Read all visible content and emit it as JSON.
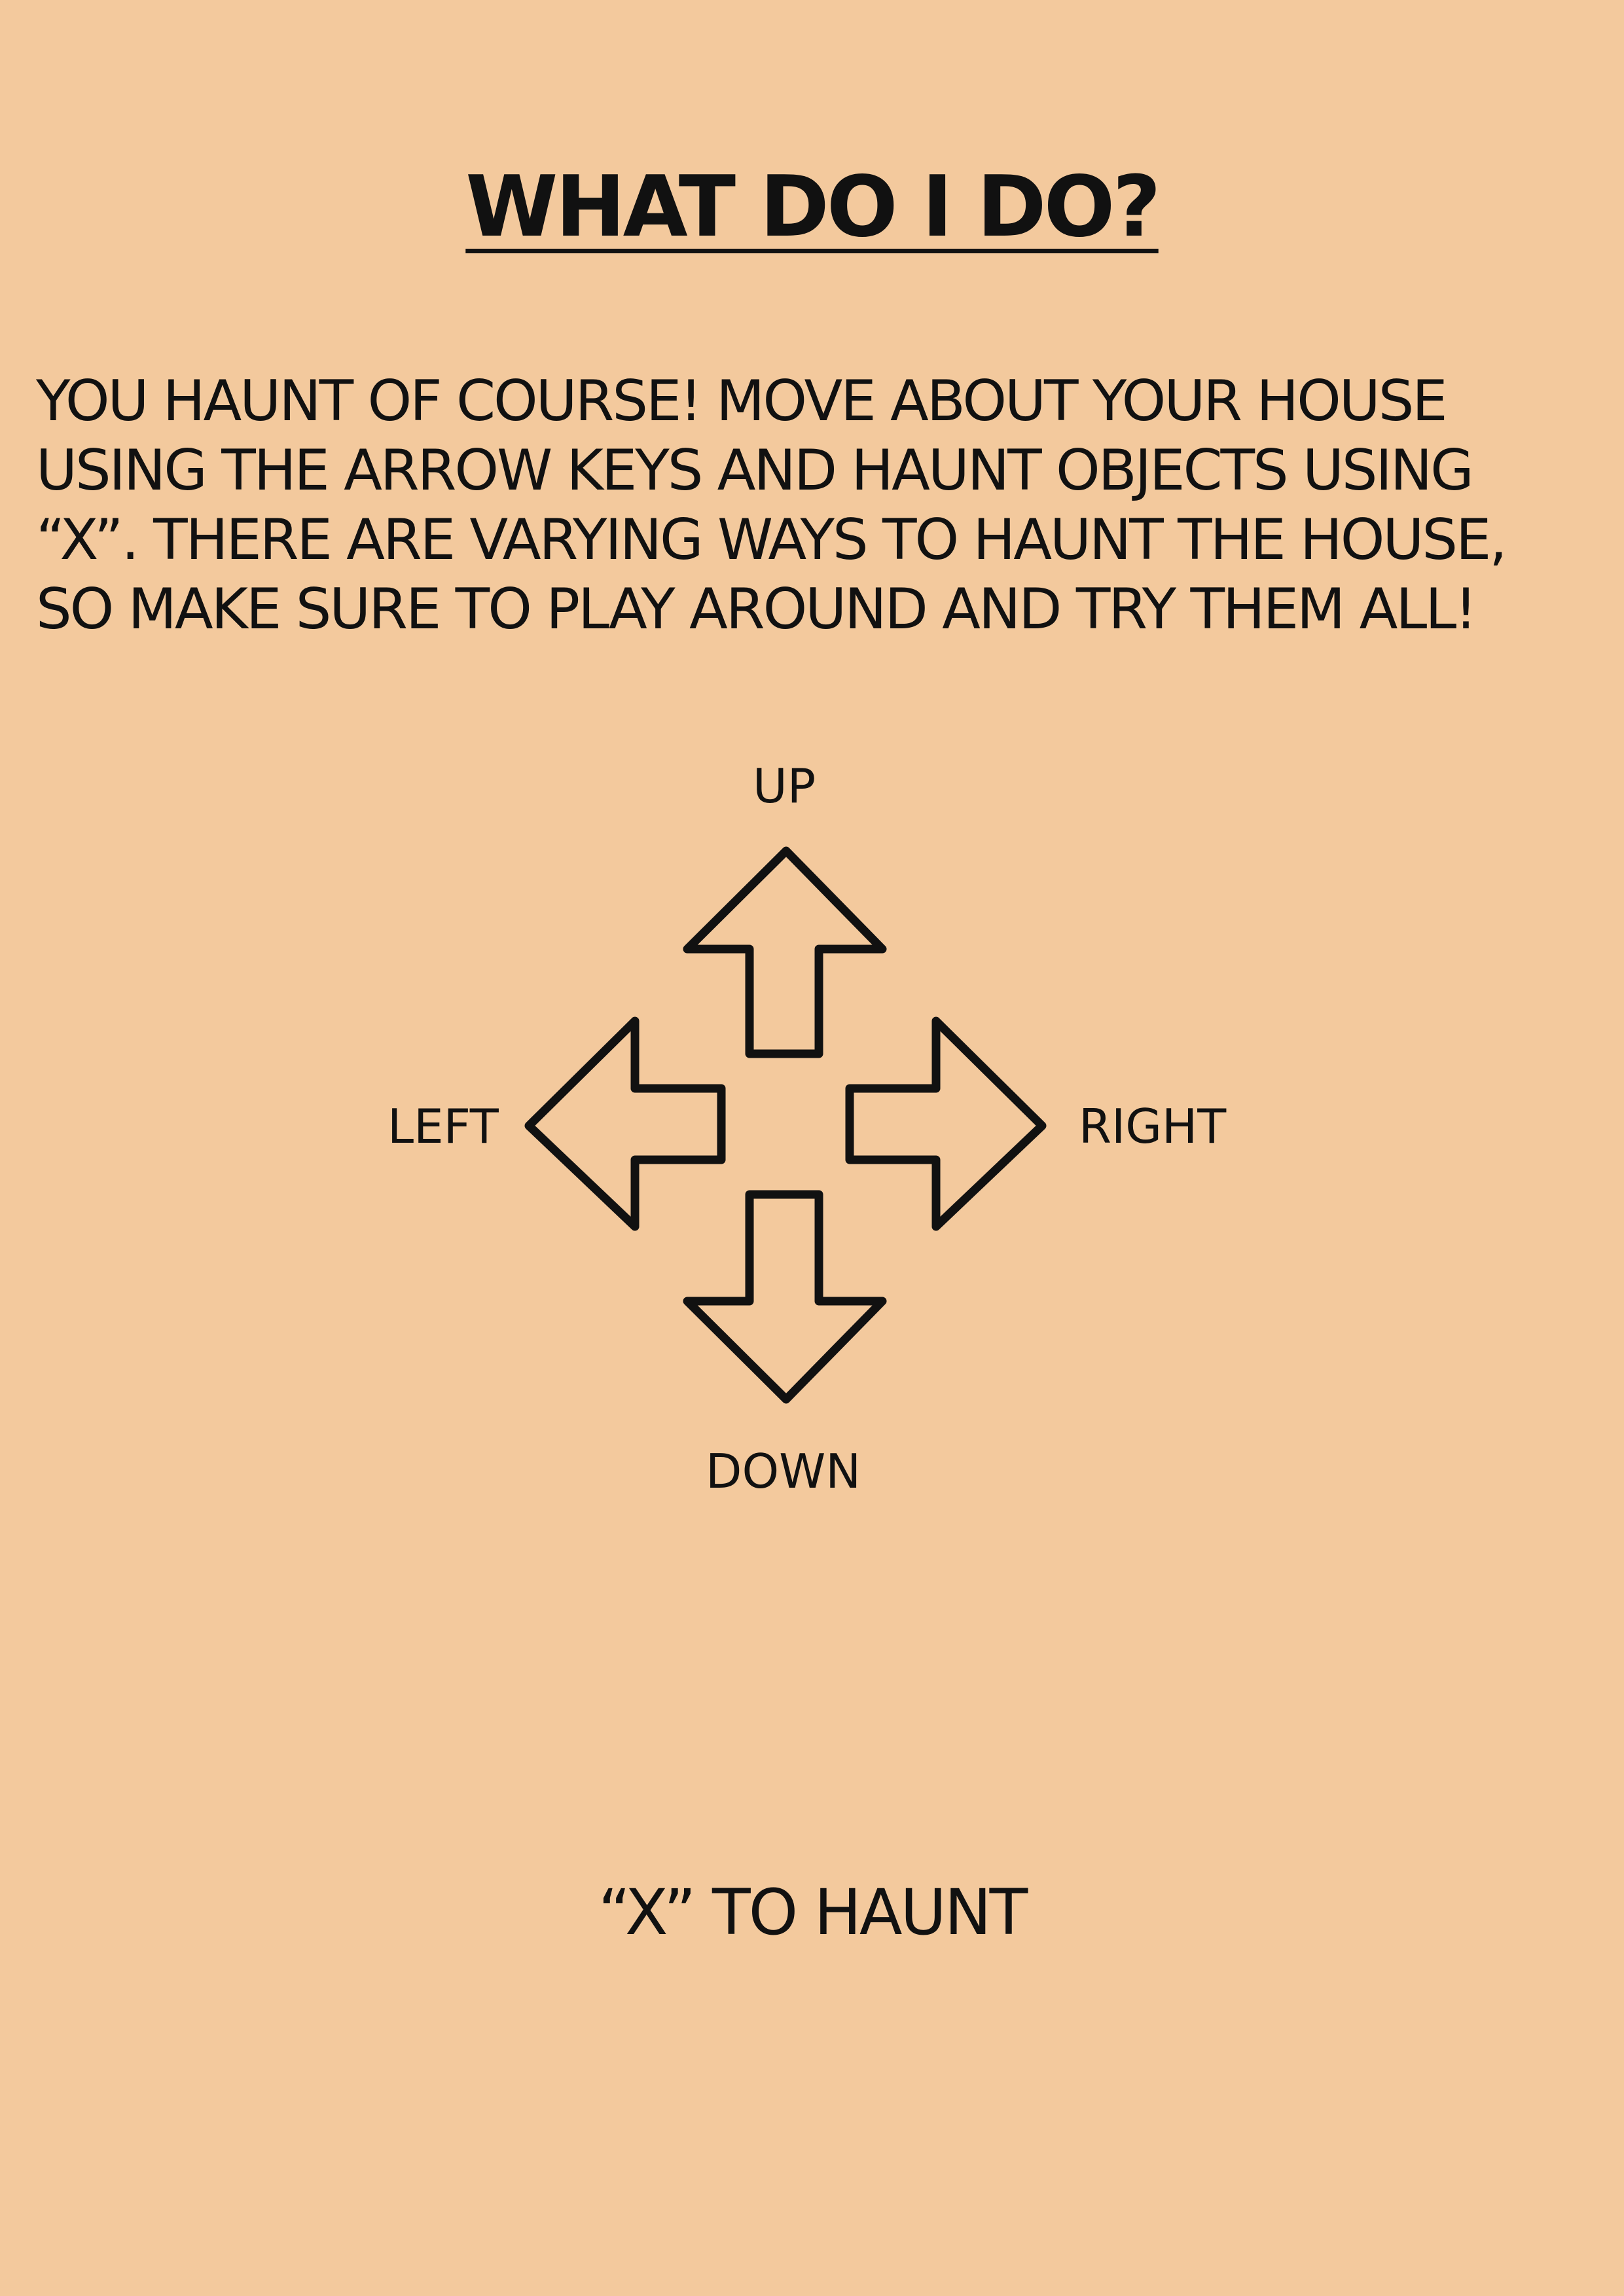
{
  "title": "WHAT DO I DO?",
  "instructions": {
    "lines": [
      "YOU HAUNT OF COURSE!  MOVE ABOUT YOUR HOUSE",
      "USING THE ARROW KEYS AND HAUNT OBJECTS USING",
      "“X”. THERE ARE VARYING WAYS TO HAUNT THE HOUSE,",
      "SO MAKE SURE TO PLAY AROUND AND TRY THEM ALL!"
    ]
  },
  "controls": {
    "up": "UP",
    "left": "LEFT",
    "right": "RIGHT",
    "down": "DOWN",
    "haunt": "“X” TO HAUNT"
  },
  "icons": {
    "up": "arrow-up-icon",
    "left": "arrow-left-icon",
    "right": "arrow-right-icon",
    "down": "arrow-down-icon"
  },
  "colors": {
    "background": "#f3c99d",
    "ink": "#111111"
  }
}
